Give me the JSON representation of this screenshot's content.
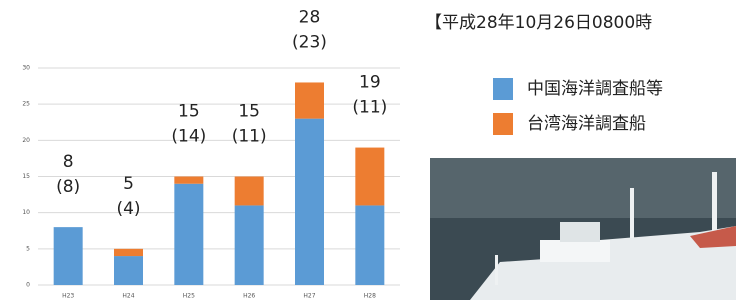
{
  "heading": "【平成28年10月26日0800時",
  "chart_data": {
    "type": "bar",
    "stacked": true,
    "categories": [
      "H23",
      "H24",
      "H25",
      "H26",
      "H27",
      "H28"
    ],
    "series": [
      {
        "name": "中国海洋調査船等",
        "color": "#5b9bd5",
        "values": [
          8,
          4,
          14,
          11,
          23,
          11
        ],
        "value_labels": [
          "(8)",
          "(4)",
          "(14)",
          "(11)",
          "(23)",
          "(11)"
        ]
      },
      {
        "name": "台湾海洋調査船",
        "color": "#ed7d31",
        "values": [
          0,
          1,
          1,
          4,
          5,
          8
        ]
      }
    ],
    "totals": [
      8,
      5,
      15,
      15,
      28,
      19
    ],
    "ylim": [
      0,
      30
    ],
    "yticks": [
      0,
      5,
      10,
      15,
      20,
      25,
      30
    ],
    "grid": true
  }
}
